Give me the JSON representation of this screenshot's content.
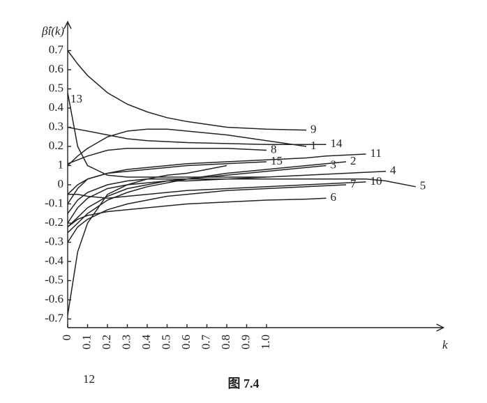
{
  "chart_data": {
    "type": "line",
    "y_label": "β̂i(k)",
    "x_label": "k",
    "caption": "图 7.4",
    "x": [
      0,
      0.05,
      0.1,
      0.2,
      0.3,
      0.4,
      0.5,
      0.6,
      0.8,
      1.0,
      1.2,
      1.3,
      1.4,
      1.5,
      1.6,
      1.75
    ],
    "xlim": [
      0,
      1.89
    ],
    "ylim": [
      -0.745,
      0.85
    ],
    "xticks": [
      0,
      0.1,
      0.2,
      0.3,
      0.4,
      0.5,
      0.6,
      0.7,
      0.8,
      0.9,
      {
        "value": 1,
        "label": "1.0"
      }
    ],
    "yticks": [
      0.7,
      0.6,
      0.5,
      0.4,
      0.3,
      0.2,
      {
        "value": 0.1,
        "label": "1"
      },
      0,
      -0.1,
      -0.2,
      -0.3,
      -0.4,
      -0.5,
      -0.6,
      -0.7
    ],
    "series": [
      {
        "name": "1",
        "color": "#222",
        "values": [
          0.1,
          0.15,
          0.19,
          0.25,
          0.28,
          0.29,
          0.29,
          0.28,
          0.26,
          0.23,
          0.2,
          null,
          null,
          null,
          null,
          null
        ]
      },
      {
        "name": "2",
        "color": "#222",
        "values": [
          -0.25,
          -0.2,
          -0.15,
          -0.08,
          -0.04,
          -0.01,
          0.01,
          0.03,
          0.06,
          0.08,
          0.1,
          0.11,
          0.12,
          null,
          null,
          null
        ]
      },
      {
        "name": "3",
        "color": "#222",
        "values": [
          -0.22,
          -0.17,
          -0.12,
          -0.06,
          -0.02,
          0,
          0.02,
          0.03,
          0.05,
          0.07,
          0.09,
          0.1,
          null,
          null,
          null,
          null
        ]
      },
      {
        "name": "4",
        "color": "#222",
        "values": [
          -0.2,
          -0.12,
          -0.07,
          -0.02,
          0,
          0.01,
          0.02,
          0.02,
          0.03,
          0.04,
          0.05,
          0.055,
          0.06,
          0.065,
          0.07,
          null
        ]
      },
      {
        "name": "5",
        "color": "#222",
        "values": [
          -0.15,
          -0.08,
          -0.04,
          0,
          0.02,
          0.03,
          0.03,
          0.03,
          0.03,
          0.03,
          0.03,
          0.03,
          0.03,
          0.03,
          0.02,
          -0.01
        ]
      },
      {
        "name": "6",
        "color": "#222",
        "values": [
          -0.22,
          -0.18,
          -0.16,
          -0.14,
          -0.13,
          -0.12,
          -0.11,
          -0.1,
          -0.09,
          -0.08,
          -0.075,
          -0.07,
          null,
          null,
          null,
          null
        ]
      },
      {
        "name": "7",
        "color": "#222",
        "values": [
          -0.3,
          -0.22,
          -0.18,
          -0.13,
          -0.1,
          -0.08,
          -0.06,
          -0.05,
          -0.03,
          -0.02,
          -0.01,
          -0.005,
          0,
          null,
          null,
          null
        ]
      },
      {
        "name": "8",
        "color": "#222",
        "values": [
          0.11,
          0.13,
          0.15,
          0.18,
          0.19,
          0.19,
          0.19,
          0.19,
          0.19,
          0.18,
          null,
          null,
          null,
          null,
          null,
          null
        ]
      },
      {
        "name": "9",
        "color": "#222",
        "values": [
          0.7,
          0.63,
          0.57,
          0.48,
          0.42,
          0.38,
          0.35,
          0.33,
          0.3,
          0.29,
          0.285,
          null,
          null,
          null,
          null,
          null
        ]
      },
      {
        "name": "10",
        "color": "#222",
        "values": [
          -0.05,
          -0.05,
          -0.06,
          -0.07,
          -0.06,
          -0.05,
          -0.04,
          -0.03,
          -0.02,
          -0.01,
          0,
          0.005,
          0.01,
          0.015,
          null,
          null
        ]
      },
      {
        "name": "11",
        "color": "#222",
        "values": [
          -0.1,
          -0.02,
          0.03,
          0.06,
          0.08,
          0.09,
          0.1,
          0.11,
          0.12,
          0.13,
          0.14,
          0.15,
          0.155,
          0.16,
          null,
          null
        ]
      },
      {
        "name": "12",
        "color": "#222",
        "values": [
          -0.68,
          -0.35,
          -0.2,
          -0.05,
          0,
          0.03,
          0.05,
          0.06,
          0.1,
          null,
          null,
          null,
          null,
          null,
          null,
          null
        ]
      },
      {
        "name": "13",
        "color": "#222",
        "values": [
          0.48,
          0.2,
          0.1,
          0.05,
          0.04,
          0.04,
          0.04,
          0.04,
          0.04,
          0.04,
          null,
          null,
          null,
          null,
          null,
          null
        ]
      },
      {
        "name": "14",
        "color": "#222",
        "values": [
          0.3,
          0.29,
          0.28,
          0.26,
          0.24,
          0.23,
          0.225,
          0.22,
          0.215,
          0.21,
          0.21,
          0.21,
          null,
          null,
          null,
          null
        ]
      },
      {
        "name": "15",
        "color": "#222",
        "values": [
          -0.05,
          0,
          0.03,
          0.06,
          0.07,
          0.08,
          0.09,
          0.1,
          0.11,
          0.12,
          null,
          null,
          null,
          null,
          null,
          null
        ]
      }
    ]
  }
}
